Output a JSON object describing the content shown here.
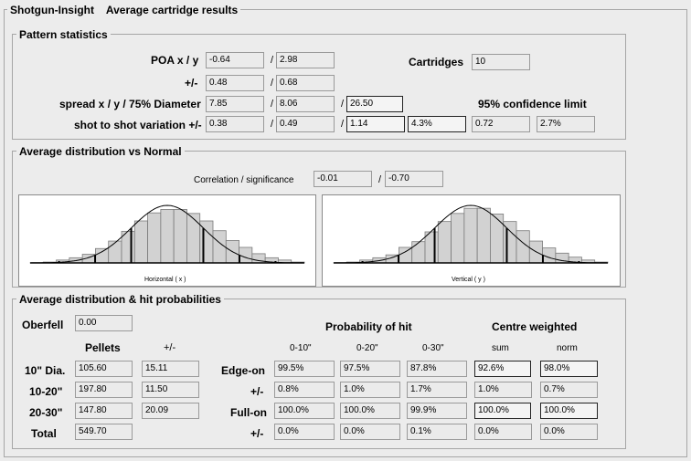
{
  "header": {
    "app": "Shotgun-Insight",
    "title": "Average cartridge results"
  },
  "pattern": {
    "legend": "Pattern statistics",
    "poa_label": "POA x / y",
    "poa_x": "-0.64",
    "poa_y": "2.98",
    "pm_label": "+/-",
    "pm_x": "0.48",
    "pm_y": "0.68",
    "cartridges_label": "Cartridges",
    "cartridges": "10",
    "spread_label": "spread x / y / 75% Diameter",
    "spread_x": "7.85",
    "spread_y": "8.06",
    "spread_d": "26.50",
    "ci_label": "95% confidence limit",
    "sts_label": "shot to shot variation +/-",
    "sts_x": "0.38",
    "sts_y": "0.49",
    "sts_d": "1.14",
    "sts_dp": "4.3%",
    "ci_val": "0.72",
    "ci_pct": "2.7%"
  },
  "distribution": {
    "legend": "Average distribution vs Normal",
    "corr_label": "Correlation / significance",
    "corr": "-0.01",
    "sig": "-0.70",
    "h_caption": "Horizontal ( x )",
    "v_caption": "Vertical ( y )"
  },
  "chart_data": [
    {
      "type": "bar",
      "title": "",
      "xlabel": "Horizontal ( x )",
      "ylabel": "",
      "values": [
        0.3,
        1.5,
        5,
        9,
        15,
        25,
        38,
        55,
        73,
        87,
        93,
        93,
        86,
        73,
        56,
        39,
        27,
        16,
        9,
        5,
        1.5
      ]
    },
    {
      "type": "bar",
      "title": "",
      "xlabel": "Vertical ( y )",
      "ylabel": "",
      "values": [
        0.3,
        1.5,
        5,
        9,
        14,
        27,
        37,
        54,
        72,
        86,
        95,
        95,
        85,
        72,
        56,
        38,
        26,
        17,
        10,
        5,
        1.5
      ]
    }
  ],
  "hits": {
    "legend": "Average distribution & hit probabilities",
    "oberfell_label": "Oberfell",
    "oberfell": "0.00",
    "pellets_label": "Pellets",
    "pm_label": "+/-",
    "prob_label": "Probability of hit",
    "centre_label": "Centre weighted",
    "cols": [
      "0-10\"",
      "0-20\"",
      "0-30\"",
      "sum",
      "norm"
    ],
    "rows": [
      {
        "label": "10\" Dia.",
        "pellets": "105.60",
        "pm": "15.11",
        "type": "Edge-on",
        "vals": [
          "99.5%",
          "97.5%",
          "87.8%",
          "92.6%",
          "98.0%"
        ]
      },
      {
        "label": "10-20\"",
        "pellets": "197.80",
        "pm": "11.50",
        "type": "+/-",
        "vals": [
          "0.8%",
          "1.0%",
          "1.7%",
          "1.0%",
          "0.7%"
        ]
      },
      {
        "label": "20-30\"",
        "pellets": "147.80",
        "pm": "20.09",
        "type": "Full-on",
        "vals": [
          "100.0%",
          "100.0%",
          "99.9%",
          "100.0%",
          "100.0%"
        ]
      },
      {
        "label": "Total",
        "pellets": "549.70",
        "pm": "",
        "type": "+/-",
        "vals": [
          "0.0%",
          "0.0%",
          "0.1%",
          "0.0%",
          "0.0%"
        ]
      }
    ]
  }
}
